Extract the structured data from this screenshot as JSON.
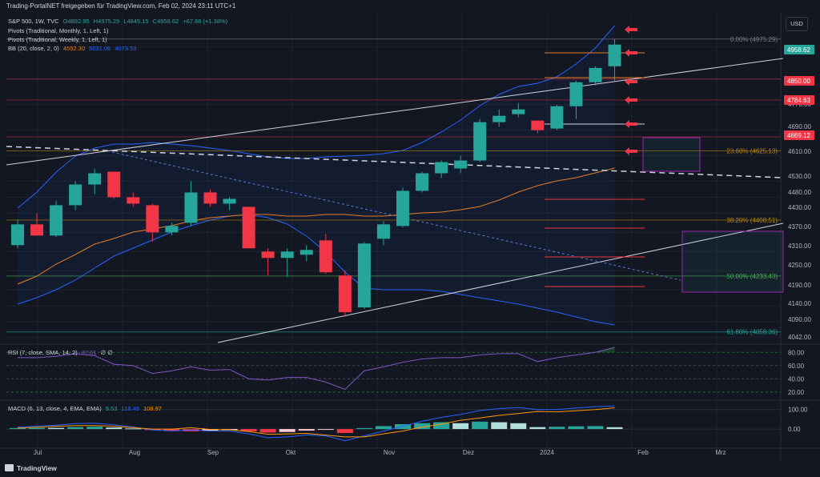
{
  "header": {
    "timestamp": "Trading-PortalNET freigegeben für TradingView.com, Feb 02, 2024 23:11 UTC+1",
    "symbol": "S&P 500, 1W, TVC",
    "ohlc": {
      "o": "O4892.95",
      "h": "H4975.29",
      "l": "L4845.15",
      "c": "C4958.62",
      "chg": "+67.66 (+1.38%)"
    },
    "indicators": [
      "Pivots (Traditional, Monthly, 1, Left, 1)",
      "Pivots (Traditional, Weekly, 1, Left, 1)"
    ],
    "bb": {
      "label": "BB (20, close, 2, 0)",
      "basis": "4552.30",
      "upper": "5031.06",
      "lower": "4073.53"
    }
  },
  "currency_button": "USD",
  "brand": "TradingView",
  "rsi_legend": {
    "label": "RSI (7, close, SMA, 14, 2)",
    "value": "87.61",
    "extra": "∅  ∅"
  },
  "macd_legend": {
    "label": "MACD (6, 13, close, 4, EMA, EMA)",
    "hist": "9.53",
    "macd": "118.49",
    "signal": "108.97"
  },
  "colors": {
    "background": "#131722",
    "up": "#26a69a",
    "down": "#f23645",
    "bb": "#2962ff",
    "basis": "#e67e22",
    "fib": "#b8860b",
    "arrow": "#f23645"
  },
  "chart_data": [
    {
      "type": "candlestick",
      "title": "S&P 500, 1W, TVC",
      "x_tick_labels": [
        "Jul",
        "Aug",
        "Sep",
        "Okt",
        "Nov",
        "Dez",
        "2024",
        "Feb",
        "Mrz"
      ],
      "y_tick_labels": [
        "4958.62",
        "4850.00",
        "4784.63",
        "4770.00",
        "4690.00",
        "4669.12",
        "4610.00",
        "4530.00",
        "4480.00",
        "4430.00",
        "4370.00",
        "4310.00",
        "4250.00",
        "4190.00",
        "4140.00",
        "4090.00",
        "4042.00"
      ],
      "ylim": [
        4020,
        5060
      ],
      "candles": [
        {
          "o": 4330,
          "h": 4410,
          "l": 4320,
          "c": 4395
        },
        {
          "o": 4395,
          "h": 4430,
          "l": 4360,
          "c": 4360
        },
        {
          "o": 4360,
          "h": 4470,
          "l": 4355,
          "c": 4455
        },
        {
          "o": 4455,
          "h": 4530,
          "l": 4440,
          "c": 4520
        },
        {
          "o": 4520,
          "h": 4570,
          "l": 4490,
          "c": 4555
        },
        {
          "o": 4560,
          "h": 4560,
          "l": 4475,
          "c": 4480
        },
        {
          "o": 4480,
          "h": 4495,
          "l": 4450,
          "c": 4460
        },
        {
          "o": 4455,
          "h": 4460,
          "l": 4340,
          "c": 4370
        },
        {
          "o": 4370,
          "h": 4400,
          "l": 4360,
          "c": 4390
        },
        {
          "o": 4400,
          "h": 4530,
          "l": 4390,
          "c": 4495
        },
        {
          "o": 4495,
          "h": 4505,
          "l": 4450,
          "c": 4460
        },
        {
          "o": 4460,
          "h": 4480,
          "l": 4440,
          "c": 4475
        },
        {
          "o": 4450,
          "h": 4450,
          "l": 4320,
          "c": 4320
        },
        {
          "o": 4310,
          "h": 4320,
          "l": 4235,
          "c": 4290
        },
        {
          "o": 4290,
          "h": 4320,
          "l": 4230,
          "c": 4310
        },
        {
          "o": 4300,
          "h": 4330,
          "l": 4280,
          "c": 4315
        },
        {
          "o": 4345,
          "h": 4365,
          "l": 4240,
          "c": 4245
        },
        {
          "o": 4235,
          "h": 4250,
          "l": 4105,
          "c": 4120
        },
        {
          "o": 4135,
          "h": 4340,
          "l": 4130,
          "c": 4335
        },
        {
          "o": 4350,
          "h": 4405,
          "l": 4330,
          "c": 4395
        },
        {
          "o": 4390,
          "h": 4510,
          "l": 4385,
          "c": 4500
        },
        {
          "o": 4500,
          "h": 4560,
          "l": 4495,
          "c": 4555
        },
        {
          "o": 4555,
          "h": 4595,
          "l": 4540,
          "c": 4590
        },
        {
          "o": 4570,
          "h": 4610,
          "l": 4555,
          "c": 4595
        },
        {
          "o": 4595,
          "h": 4725,
          "l": 4590,
          "c": 4715
        },
        {
          "o": 4715,
          "h": 4755,
          "l": 4700,
          "c": 4735
        },
        {
          "o": 4740,
          "h": 4775,
          "l": 4730,
          "c": 4755
        },
        {
          "o": 4720,
          "h": 4720,
          "l": 4680,
          "c": 4690
        },
        {
          "o": 4695,
          "h": 4770,
          "l": 4690,
          "c": 4765
        },
        {
          "o": 4765,
          "h": 4845,
          "l": 4725,
          "c": 4840
        },
        {
          "o": 4840,
          "h": 4890,
          "l": 4830,
          "c": 4885
        },
        {
          "o": 4890,
          "h": 4975,
          "l": 4845,
          "c": 4958
        }
      ],
      "fibonacci": [
        {
          "label": "0.00% (4975.29)",
          "value": 4975.29
        },
        {
          "label": "23.60% (4625.13)",
          "value": 4625.13
        },
        {
          "label": "38.20% (4408.51)",
          "value": 4408.51
        },
        {
          "label": "50.00% (4233.43)",
          "value": 4233.43
        },
        {
          "label": "61.80% (4058.36)",
          "value": 4058.36
        }
      ],
      "price_labels": [
        {
          "text": "4958.62",
          "value": 4958.62,
          "kind": "last"
        },
        {
          "text": "4850.00",
          "value": 4850,
          "kind": "level"
        },
        {
          "text": "4784.63",
          "value": 4784.63,
          "kind": "level"
        },
        {
          "text": "4669.12",
          "value": 4669.12,
          "kind": "level"
        }
      ]
    },
    {
      "type": "line",
      "title": "RSI (7, close, SMA, 14, 2)",
      "ylim": [
        10,
        90
      ],
      "y_tick_labels": [
        "80.00",
        "60.00",
        "40.00",
        "20.00"
      ],
      "values": [
        72,
        72,
        74,
        78,
        75,
        62,
        60,
        48,
        52,
        58,
        53,
        54,
        40,
        38,
        42,
        42,
        35,
        24,
        52,
        58,
        65,
        70,
        72,
        72,
        76,
        78,
        78,
        66,
        72,
        76,
        80,
        87.61
      ]
    },
    {
      "type": "bar",
      "title": "MACD (6, 13, close, 4, EMA, EMA)",
      "ylim": [
        -90,
        140
      ],
      "y_tick_labels": [
        "100.00",
        "0.00"
      ],
      "series": [
        {
          "name": "Histogram",
          "values": [
            5,
            6,
            6,
            10,
            12,
            8,
            3,
            -5,
            -10,
            -12,
            -8,
            -6,
            -12,
            -18,
            -15,
            -8,
            -4,
            -20,
            5,
            15,
            25,
            30,
            35,
            30,
            38,
            35,
            30,
            10,
            12,
            14,
            15,
            9.53
          ]
        },
        {
          "name": "MACD",
          "values": [
            10,
            15,
            20,
            28,
            30,
            22,
            10,
            -5,
            -10,
            -5,
            -10,
            -10,
            -25,
            -45,
            -40,
            -30,
            -35,
            -60,
            -35,
            -10,
            15,
            40,
            60,
            75,
            95,
            105,
            110,
            100,
            100,
            108,
            115,
            118.49
          ]
        },
        {
          "name": "Signal",
          "values": [
            5,
            9,
            14,
            18,
            18,
            14,
            7,
            0,
            0,
            7,
            -2,
            -4,
            -13,
            -27,
            -25,
            -22,
            -31,
            -40,
            -40,
            -25,
            -10,
            10,
            25,
            45,
            57,
            70,
            80,
            90,
            88,
            94,
            100,
            108.97
          ]
        }
      ]
    }
  ]
}
